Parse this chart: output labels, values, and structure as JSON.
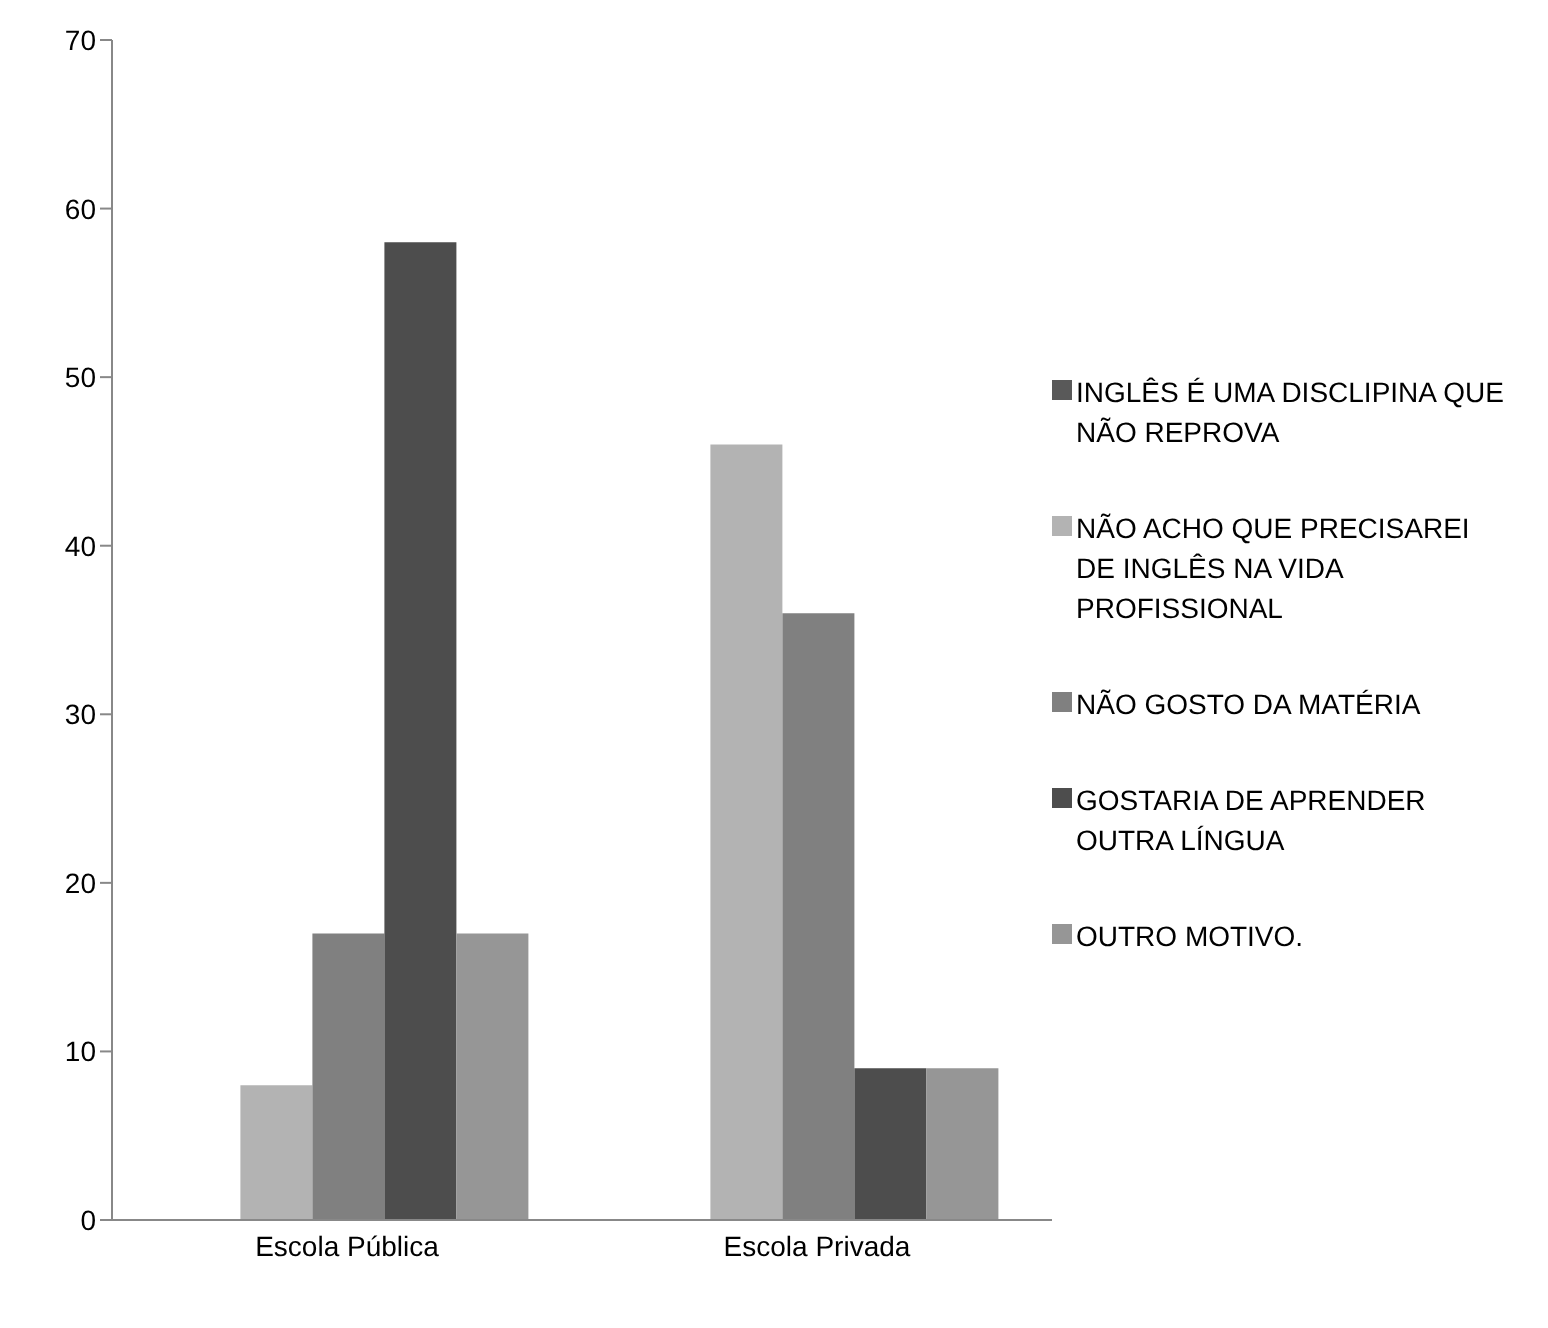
{
  "chart_data": {
    "type": "bar",
    "categories": [
      "Escola Pública",
      "Escola Privada"
    ],
    "series": [
      {
        "name": "INGLÊS É UMA DISCLIPINA QUE NÃO REPROVA",
        "color": "#595959",
        "values": [
          0,
          0
        ]
      },
      {
        "name": "NÃO ACHO QUE PRECISAREI DE INGLÊS NA VIDA PROFISSIONAL",
        "color": "#b3b3b3",
        "values": [
          8,
          46
        ]
      },
      {
        "name": "NÃO GOSTO DA MATÉRIA",
        "color": "#808080",
        "values": [
          17,
          36
        ]
      },
      {
        "name": "GOSTARIA DE APRENDER OUTRA LÍNGUA",
        "color": "#4d4d4d",
        "values": [
          58,
          9
        ]
      },
      {
        "name": "OUTRO MOTIVO.",
        "color": "#969696",
        "values": [
          17,
          9
        ]
      }
    ],
    "ylim": [
      0,
      70
    ],
    "yticks": [
      0,
      10,
      20,
      30,
      40,
      50,
      60,
      70
    ],
    "grid": false,
    "legend": "right"
  }
}
